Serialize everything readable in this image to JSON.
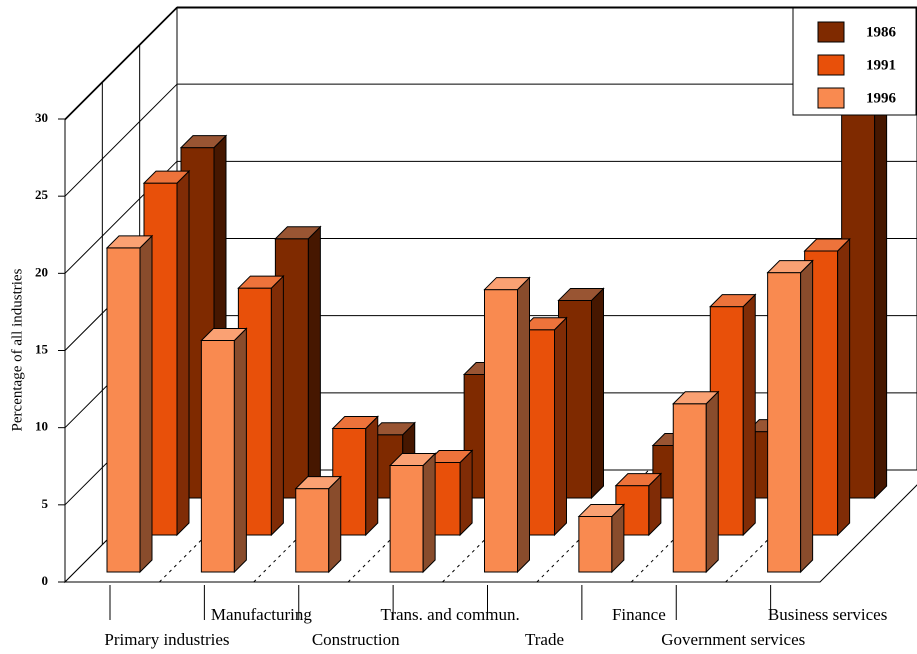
{
  "chart_data": {
    "type": "bar3d",
    "y_label": "Percentage of all industries",
    "categories": [
      "Primary industries",
      "Manufacturing",
      "Construction",
      "Trans. and commun.",
      "Trade",
      "Finance",
      "Government services",
      "Business services"
    ],
    "series": [
      {
        "name": "1986",
        "color": "#7f2a00",
        "values": [
          22.7,
          16.8,
          4.1,
          8.0,
          12.8,
          3.4,
          4.3,
          26.0
        ]
      },
      {
        "name": "1991",
        "color": "#e8500a",
        "values": [
          22.8,
          16.0,
          6.9,
          4.7,
          13.3,
          3.2,
          14.8,
          18.4
        ]
      },
      {
        "name": "1996",
        "color": "#f98a50",
        "values": [
          21.0,
          15.0,
          5.4,
          6.9,
          18.3,
          3.6,
          10.9,
          19.4
        ]
      }
    ],
    "ylim": [
      0,
      30
    ],
    "yticks": [
      0,
      5,
      10,
      15,
      20,
      25,
      30
    ],
    "grid": true,
    "legend": "top-right"
  }
}
